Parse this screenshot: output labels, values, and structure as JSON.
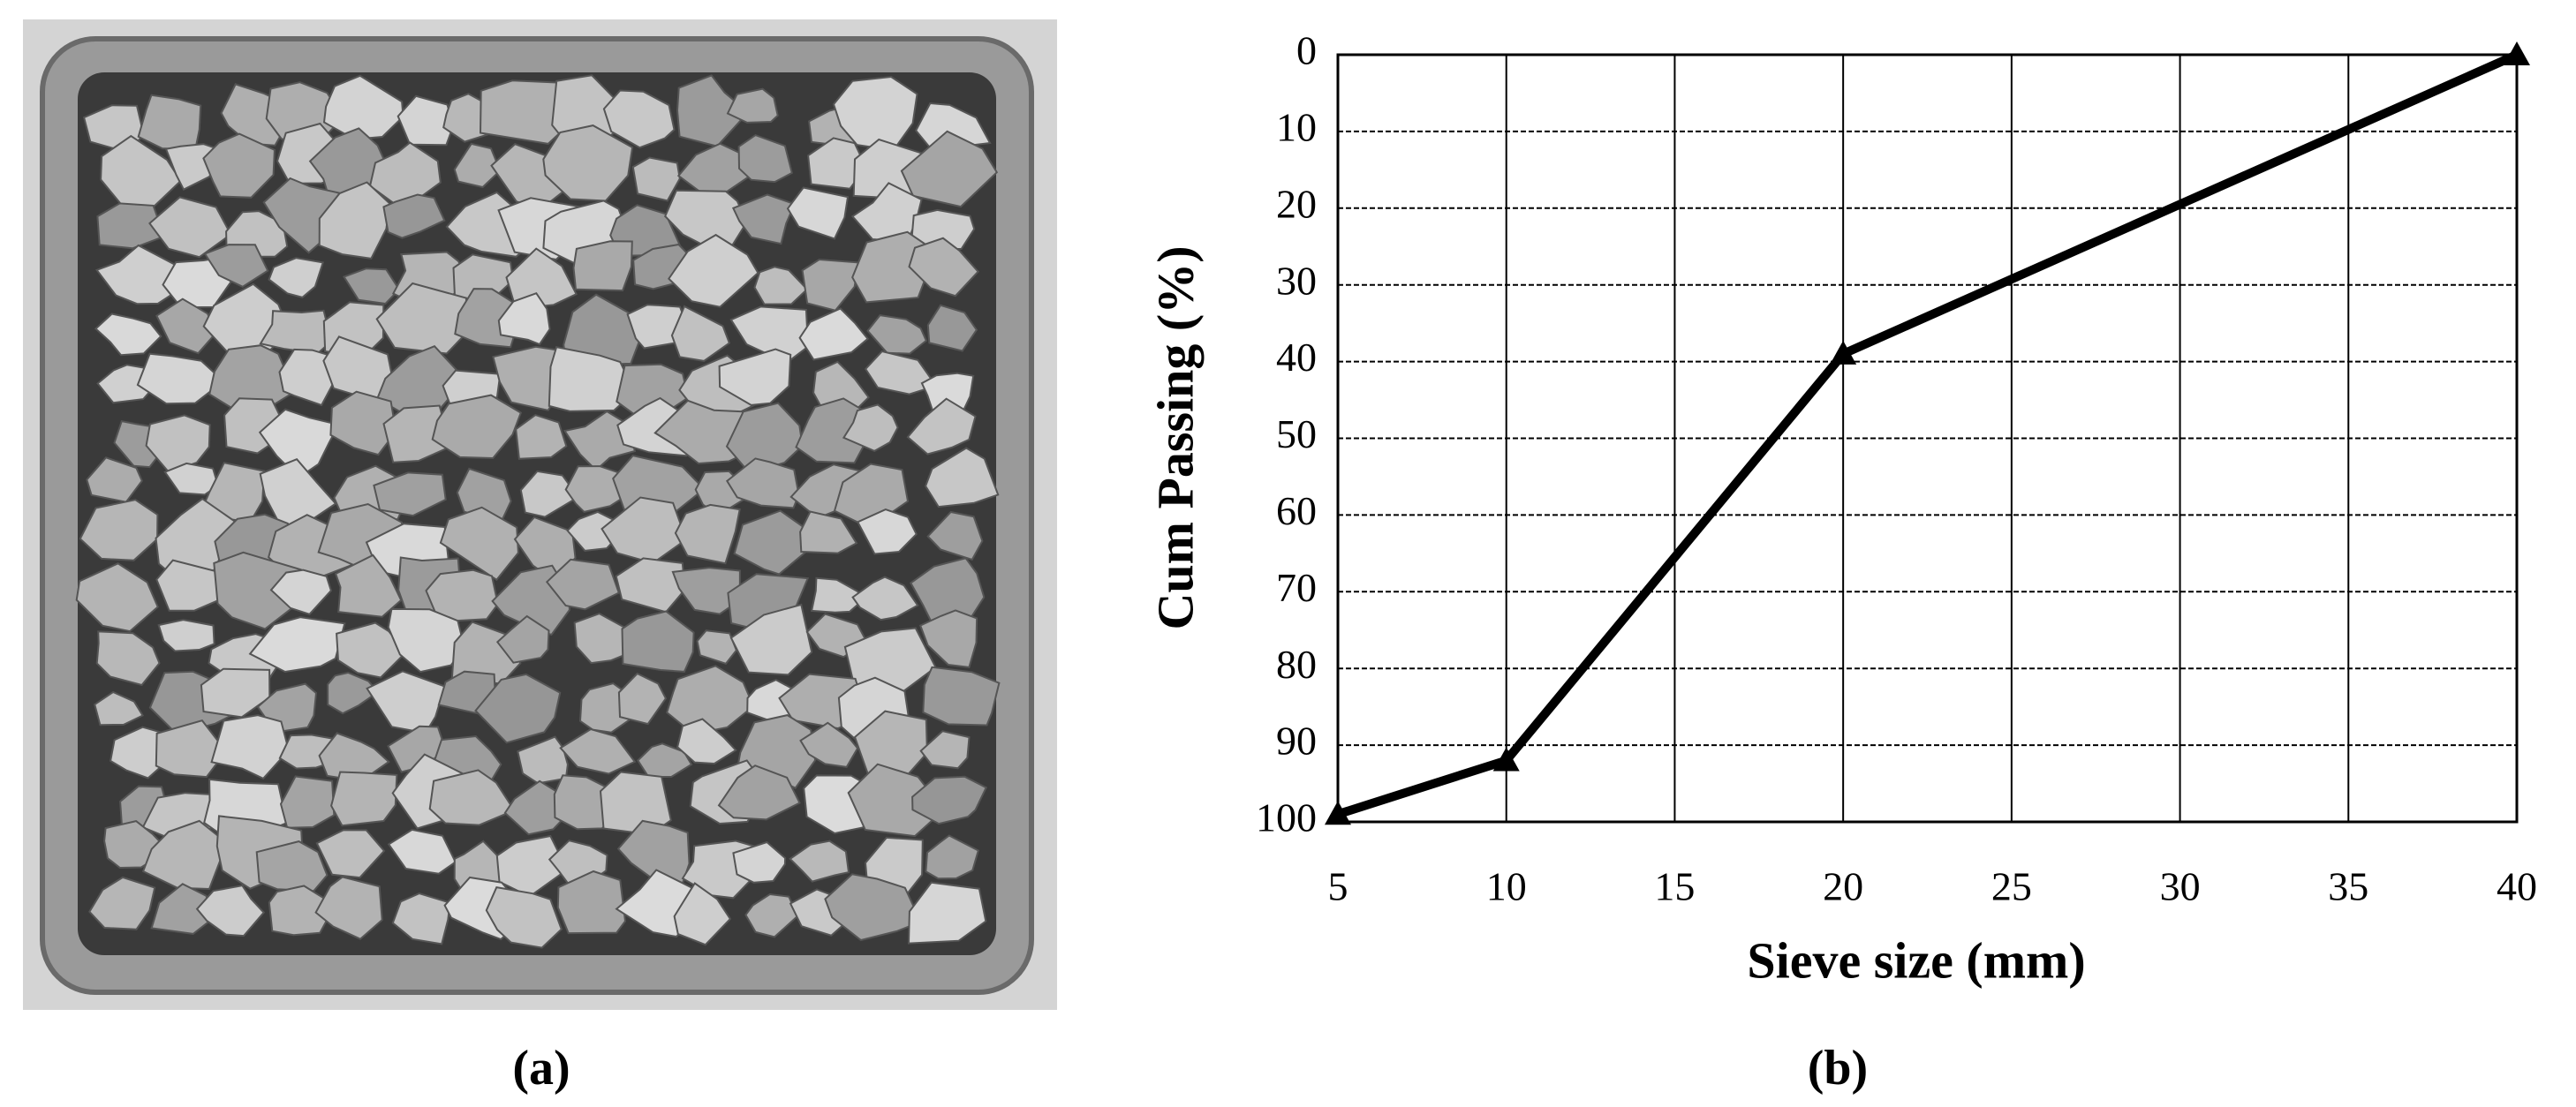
{
  "chart_data": {
    "type": "line",
    "x_label": "Sieve size (mm)",
    "y_label": "Cum Passing (%)",
    "x": [
      5,
      10,
      20,
      40
    ],
    "series": [
      {
        "color": "#000000",
        "values": [
          99,
          92,
          39,
          0
        ]
      }
    ],
    "xlim": [
      5,
      40
    ],
    "xticks": [
      5,
      10,
      15,
      20,
      25,
      30,
      35,
      40
    ],
    "ylim": [
      100,
      0
    ],
    "yticks": [
      0,
      10,
      20,
      30,
      40,
      50,
      60,
      70,
      80,
      90,
      100
    ],
    "grid": true,
    "marker": "triangle"
  },
  "captions": [
    "(a)",
    "(b)"
  ]
}
